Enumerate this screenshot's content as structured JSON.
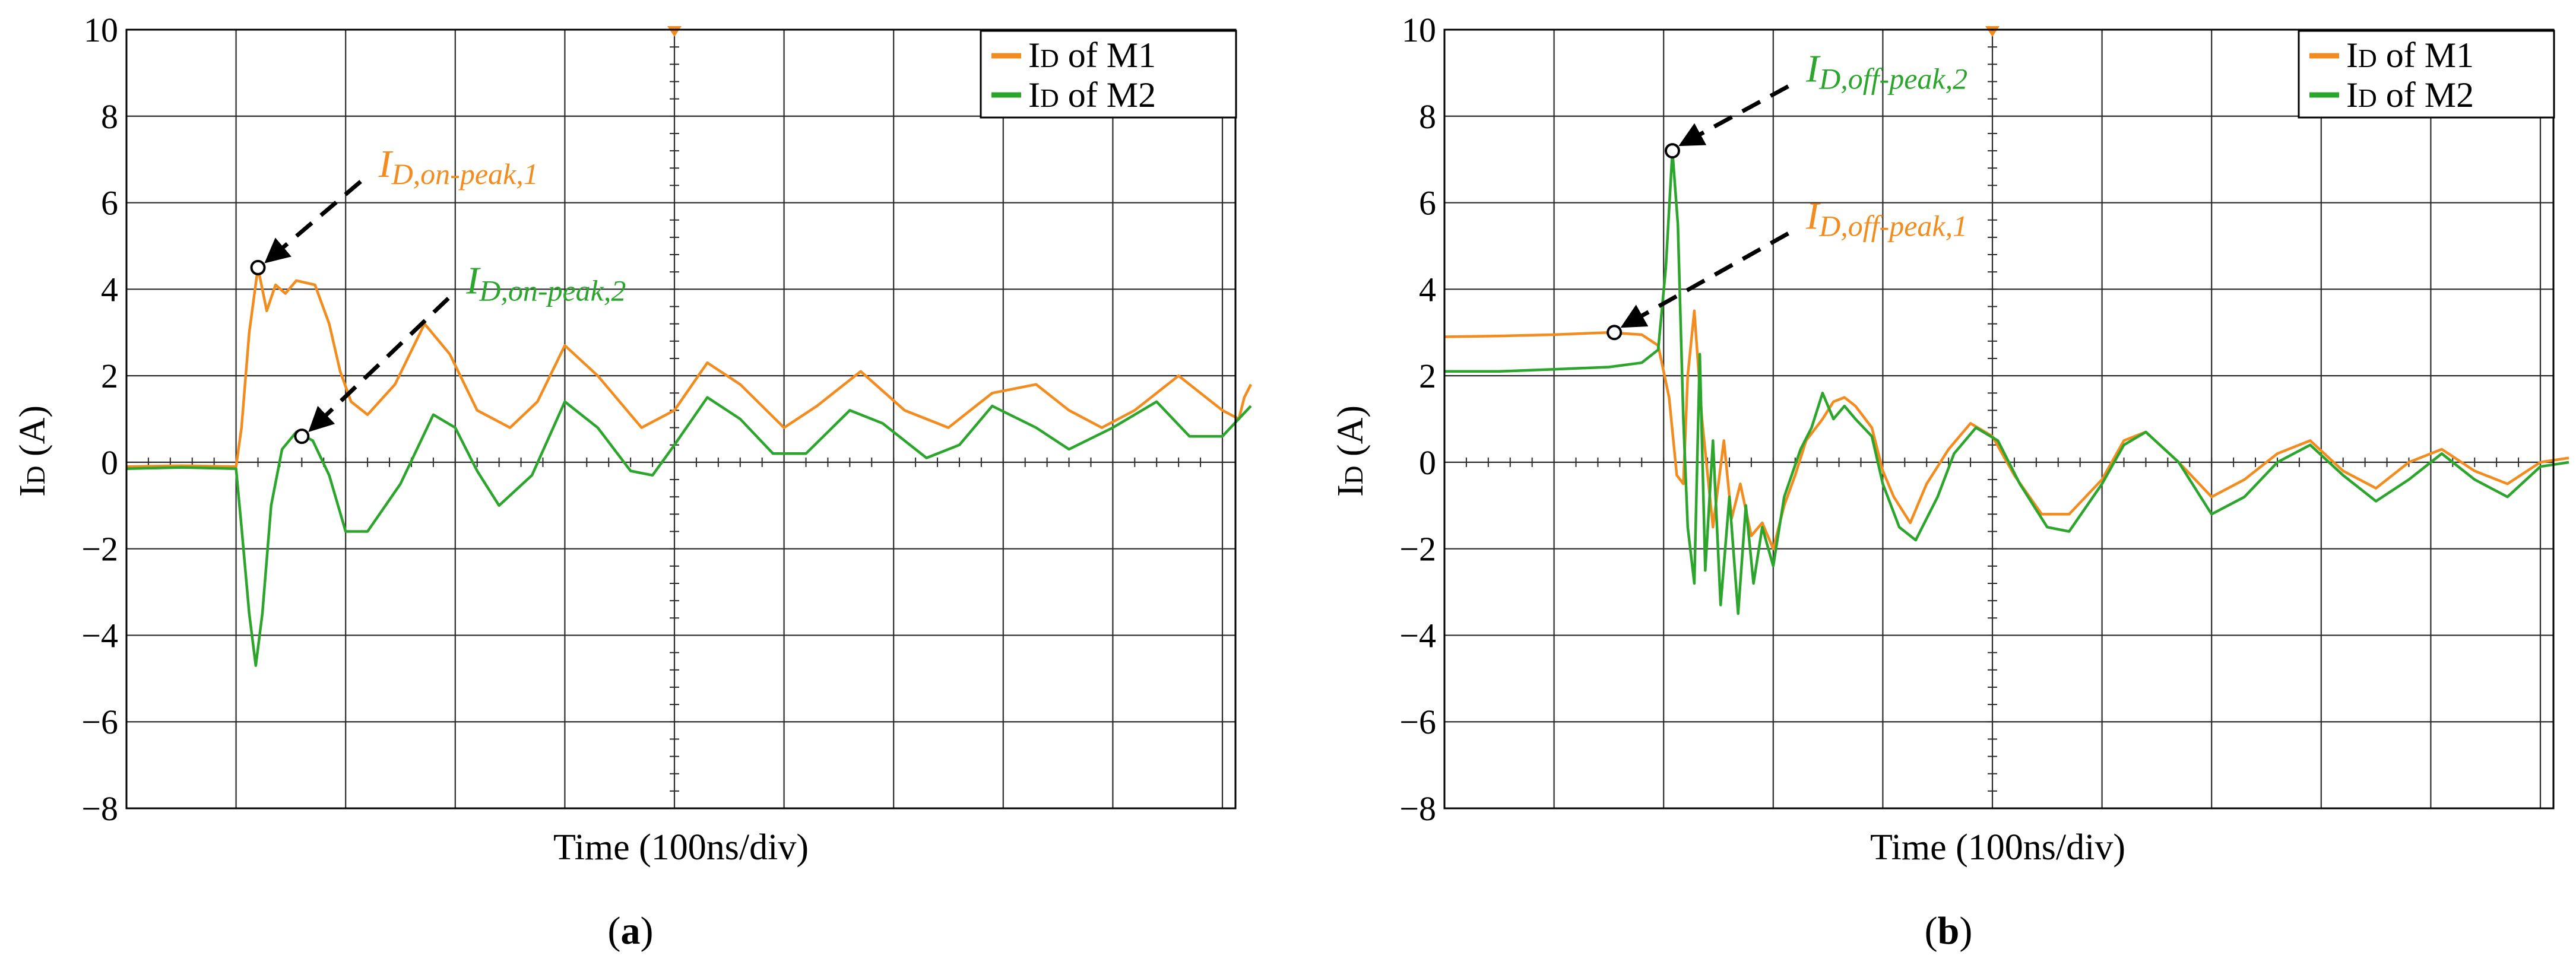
{
  "chart_data": [
    {
      "panel": "a",
      "type": "line",
      "xlabel": "Time (100ns/div)",
      "ylabel": "ID (A)",
      "ylabel_main": "I",
      "ylabel_sub": "D",
      "ylabel_rest": " (A)",
      "ylim": [
        -8,
        10
      ],
      "yticks": [
        "-8",
        "-6",
        "-4",
        "-2",
        "0",
        "2",
        "4",
        "6",
        "8",
        "10"
      ],
      "x_divisions": 10,
      "caption_open": "(",
      "caption_letter": "a",
      "caption_close": ")",
      "legend": {
        "position": "top-right",
        "entries": [
          {
            "main": "I",
            "sub": "D",
            "rest": " of M1",
            "color": "#F28C1E"
          },
          {
            "main": "I",
            "sub": "D",
            "rest": " of M2",
            "color": "#2CA52C"
          }
        ]
      },
      "annotations": [
        {
          "main": "I",
          "sub": "D,on-peak,1",
          "color": "#F28C1E",
          "point": [
            1.2,
            4.5
          ],
          "text_at": [
            2.3,
            6.6
          ]
        },
        {
          "main": "I",
          "sub": "D,on-peak,2",
          "color": "#2CA52C",
          "point": [
            1.6,
            0.6
          ],
          "text_at": [
            3.1,
            3.9
          ]
        }
      ],
      "series": [
        {
          "name": "ID of M1",
          "color": "#F28C1E",
          "points": [
            [
              0,
              -0.1
            ],
            [
              0.5,
              -0.08
            ],
            [
              1.0,
              -0.1
            ],
            [
              1.05,
              0.8
            ],
            [
              1.12,
              3.0
            ],
            [
              1.2,
              4.5
            ],
            [
              1.28,
              3.5
            ],
            [
              1.36,
              4.1
            ],
            [
              1.45,
              3.9
            ],
            [
              1.55,
              4.2
            ],
            [
              1.72,
              4.1
            ],
            [
              1.85,
              3.2
            ],
            [
              1.95,
              2.1
            ],
            [
              2.05,
              1.4
            ],
            [
              2.2,
              1.1
            ],
            [
              2.45,
              1.8
            ],
            [
              2.72,
              3.2
            ],
            [
              2.95,
              2.5
            ],
            [
              3.2,
              1.2
            ],
            [
              3.5,
              0.8
            ],
            [
              3.75,
              1.4
            ],
            [
              4.0,
              2.7
            ],
            [
              4.3,
              2.0
            ],
            [
              4.7,
              0.8
            ],
            [
              5.0,
              1.2
            ],
            [
              5.3,
              2.3
            ],
            [
              5.6,
              1.8
            ],
            [
              6.0,
              0.8
            ],
            [
              6.3,
              1.3
            ],
            [
              6.7,
              2.1
            ],
            [
              7.1,
              1.2
            ],
            [
              7.5,
              0.8
            ],
            [
              7.9,
              1.6
            ],
            [
              8.3,
              1.8
            ],
            [
              8.6,
              1.2
            ],
            [
              8.9,
              0.8
            ],
            [
              9.2,
              1.2
            ],
            [
              9.6,
              2.0
            ],
            [
              10.0,
              1.2
            ],
            [
              10.15,
              1.0
            ],
            [
              10.2,
              1.5
            ],
            [
              10.26,
              1.8
            ]
          ]
        },
        {
          "name": "ID of M2",
          "color": "#2CA52C",
          "points": [
            [
              0,
              -0.15
            ],
            [
              0.5,
              -0.12
            ],
            [
              1.0,
              -0.15
            ],
            [
              1.05,
              -1.5
            ],
            [
              1.12,
              -3.5
            ],
            [
              1.18,
              -4.7
            ],
            [
              1.24,
              -3.5
            ],
            [
              1.32,
              -1.0
            ],
            [
              1.42,
              0.3
            ],
            [
              1.55,
              0.7
            ],
            [
              1.7,
              0.5
            ],
            [
              1.85,
              -0.3
            ],
            [
              2.0,
              -1.6
            ],
            [
              2.2,
              -1.6
            ],
            [
              2.5,
              -0.5
            ],
            [
              2.8,
              1.1
            ],
            [
              3.0,
              0.8
            ],
            [
              3.2,
              -0.2
            ],
            [
              3.4,
              -1.0
            ],
            [
              3.7,
              -0.3
            ],
            [
              4.0,
              1.4
            ],
            [
              4.3,
              0.8
            ],
            [
              4.6,
              -0.2
            ],
            [
              4.8,
              -0.3
            ],
            [
              5.0,
              0.4
            ],
            [
              5.3,
              1.5
            ],
            [
              5.6,
              1.0
            ],
            [
              5.9,
              0.2
            ],
            [
              6.2,
              0.2
            ],
            [
              6.6,
              1.2
            ],
            [
              6.9,
              0.9
            ],
            [
              7.3,
              0.1
            ],
            [
              7.6,
              0.4
            ],
            [
              7.9,
              1.3
            ],
            [
              8.3,
              0.8
            ],
            [
              8.6,
              0.3
            ],
            [
              9.0,
              0.8
            ],
            [
              9.4,
              1.4
            ],
            [
              9.7,
              0.6
            ],
            [
              10.0,
              0.6
            ],
            [
              10.26,
              1.3
            ]
          ]
        }
      ]
    },
    {
      "panel": "b",
      "type": "line",
      "xlabel": "Time (100ns/div)",
      "ylabel": "ID (A)",
      "ylabel_main": "I",
      "ylabel_sub": "D",
      "ylabel_rest": " (A)",
      "ylim": [
        -8,
        10
      ],
      "yticks": [
        "-8",
        "-6",
        "-4",
        "-2",
        "0",
        "2",
        "4",
        "6",
        "8",
        "10"
      ],
      "x_divisions": 10,
      "caption_open": "(",
      "caption_letter": "b",
      "caption_close": ")",
      "legend": {
        "position": "top-right",
        "entries": [
          {
            "main": "I",
            "sub": "D",
            "rest": " of M1",
            "color": "#F28C1E"
          },
          {
            "main": "I",
            "sub": "D",
            "rest": " of M2",
            "color": "#2CA52C"
          }
        ]
      },
      "annotations": [
        {
          "main": "I",
          "sub": "D,off-peak,2",
          "color": "#2CA52C",
          "point": [
            2.08,
            7.2
          ],
          "text_at": [
            3.3,
            8.8
          ]
        },
        {
          "main": "I",
          "sub": "D,off-peak,1",
          "color": "#F28C1E",
          "point": [
            1.55,
            3.0
          ],
          "text_at": [
            3.3,
            5.4
          ]
        }
      ],
      "series": [
        {
          "name": "ID of M1",
          "color": "#F28C1E",
          "points": [
            [
              0,
              2.9
            ],
            [
              0.5,
              2.92
            ],
            [
              1.0,
              2.95
            ],
            [
              1.5,
              3.0
            ],
            [
              1.8,
              2.95
            ],
            [
              1.95,
              2.7
            ],
            [
              2.05,
              1.5
            ],
            [
              2.12,
              -0.3
            ],
            [
              2.18,
              -0.5
            ],
            [
              2.22,
              2.0
            ],
            [
              2.28,
              3.5
            ],
            [
              2.35,
              1.0
            ],
            [
              2.45,
              -1.5
            ],
            [
              2.55,
              0.5
            ],
            [
              2.62,
              -1.3
            ],
            [
              2.7,
              -0.5
            ],
            [
              2.8,
              -1.7
            ],
            [
              2.9,
              -1.4
            ],
            [
              3.0,
              -2.0
            ],
            [
              3.1,
              -1.0
            ],
            [
              3.2,
              -0.3
            ],
            [
              3.3,
              0.5
            ],
            [
              3.45,
              1.0
            ],
            [
              3.55,
              1.4
            ],
            [
              3.65,
              1.5
            ],
            [
              3.75,
              1.3
            ],
            [
              3.9,
              0.8
            ],
            [
              4.0,
              -0.2
            ],
            [
              4.1,
              -0.8
            ],
            [
              4.25,
              -1.4
            ],
            [
              4.4,
              -0.5
            ],
            [
              4.6,
              0.3
            ],
            [
              4.8,
              0.9
            ],
            [
              5.0,
              0.6
            ],
            [
              5.2,
              -0.3
            ],
            [
              5.45,
              -1.2
            ],
            [
              5.7,
              -1.2
            ],
            [
              6.0,
              -0.4
            ],
            [
              6.2,
              0.5
            ],
            [
              6.4,
              0.7
            ],
            [
              6.7,
              0.0
            ],
            [
              7.0,
              -0.8
            ],
            [
              7.3,
              -0.4
            ],
            [
              7.6,
              0.2
            ],
            [
              7.9,
              0.5
            ],
            [
              8.2,
              -0.2
            ],
            [
              8.5,
              -0.6
            ],
            [
              8.8,
              0.0
            ],
            [
              9.1,
              0.3
            ],
            [
              9.4,
              -0.2
            ],
            [
              9.7,
              -0.5
            ],
            [
              10.0,
              0.0
            ],
            [
              10.26,
              0.1
            ]
          ]
        },
        {
          "name": "ID of M2",
          "color": "#2CA52C",
          "points": [
            [
              0,
              2.1
            ],
            [
              0.5,
              2.1
            ],
            [
              1.0,
              2.15
            ],
            [
              1.5,
              2.2
            ],
            [
              1.8,
              2.3
            ],
            [
              1.95,
              2.6
            ],
            [
              2.02,
              4.5
            ],
            [
              2.08,
              7.2
            ],
            [
              2.13,
              5.5
            ],
            [
              2.18,
              1.0
            ],
            [
              2.22,
              -1.5
            ],
            [
              2.28,
              -2.8
            ],
            [
              2.33,
              2.5
            ],
            [
              2.38,
              -2.5
            ],
            [
              2.45,
              0.5
            ],
            [
              2.52,
              -3.3
            ],
            [
              2.6,
              -0.8
            ],
            [
              2.68,
              -3.5
            ],
            [
              2.75,
              -1.0
            ],
            [
              2.82,
              -2.8
            ],
            [
              2.9,
              -1.5
            ],
            [
              3.0,
              -2.4
            ],
            [
              3.1,
              -0.8
            ],
            [
              3.25,
              0.3
            ],
            [
              3.35,
              0.8
            ],
            [
              3.45,
              1.6
            ],
            [
              3.55,
              1.0
            ],
            [
              3.65,
              1.3
            ],
            [
              3.75,
              1.0
            ],
            [
              3.9,
              0.6
            ],
            [
              4.0,
              -0.5
            ],
            [
              4.15,
              -1.5
            ],
            [
              4.3,
              -1.8
            ],
            [
              4.5,
              -0.8
            ],
            [
              4.65,
              0.2
            ],
            [
              4.85,
              0.8
            ],
            [
              5.05,
              0.5
            ],
            [
              5.25,
              -0.5
            ],
            [
              5.5,
              -1.5
            ],
            [
              5.7,
              -1.6
            ],
            [
              6.0,
              -0.5
            ],
            [
              6.2,
              0.4
            ],
            [
              6.4,
              0.7
            ],
            [
              6.7,
              0.0
            ],
            [
              7.0,
              -1.2
            ],
            [
              7.3,
              -0.8
            ],
            [
              7.6,
              0.0
            ],
            [
              7.9,
              0.4
            ],
            [
              8.2,
              -0.3
            ],
            [
              8.5,
              -0.9
            ],
            [
              8.8,
              -0.4
            ],
            [
              9.1,
              0.2
            ],
            [
              9.4,
              -0.4
            ],
            [
              9.7,
              -0.8
            ],
            [
              10.0,
              -0.1
            ],
            [
              10.26,
              0.0
            ]
          ]
        }
      ]
    }
  ]
}
